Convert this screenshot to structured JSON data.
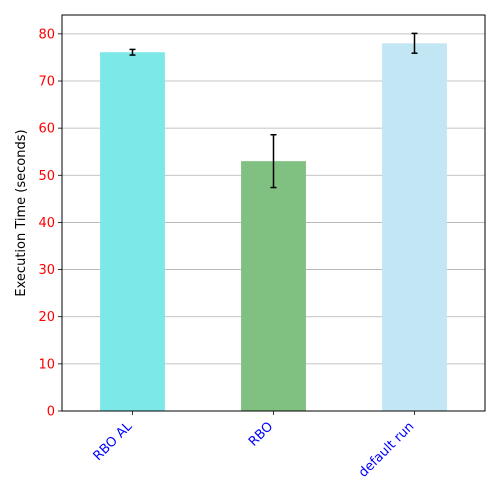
{
  "chart_data": {
    "type": "bar",
    "title": "",
    "xlabel": "",
    "ylabel": "Execution Time (seconds)",
    "categories": [
      "RBO AL",
      "RBO",
      "default run"
    ],
    "values": [
      76.1,
      53.0,
      78.0
    ],
    "errors": [
      0.6,
      5.6,
      2.1
    ],
    "bar_colors": [
      "#7de8e8",
      "#80c080",
      "#c3e6f5"
    ],
    "ylim": [
      0,
      84
    ],
    "yticks": [
      0,
      10,
      20,
      30,
      40,
      50,
      60,
      70,
      80
    ],
    "grid": "horizontal",
    "ytick_color": "#ff0000",
    "xtick_color": "#0000ff",
    "xtick_rotation": -45
  }
}
